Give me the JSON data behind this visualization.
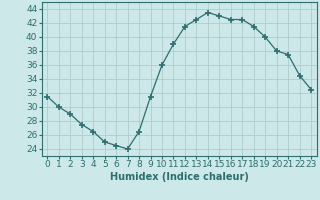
{
  "x": [
    0,
    1,
    2,
    3,
    4,
    5,
    6,
    7,
    8,
    9,
    10,
    11,
    12,
    13,
    14,
    15,
    16,
    17,
    18,
    19,
    20,
    21,
    22,
    23
  ],
  "y": [
    31.5,
    30,
    29,
    27.5,
    26.5,
    25,
    24.5,
    24,
    26.5,
    31.5,
    36,
    39,
    41.5,
    42.5,
    43.5,
    43,
    42.5,
    42.5,
    41.5,
    40,
    38,
    37.5,
    34.5,
    32.5
  ],
  "line_color": "#2d6e6e",
  "marker": "+",
  "marker_size": 4,
  "marker_lw": 1.2,
  "bg_color": "#cce8e8",
  "grid_color": "#aac8c8",
  "xlabel": "Humidex (Indice chaleur)",
  "xlim": [
    -0.5,
    23.5
  ],
  "ylim": [
    23,
    45
  ],
  "yticks": [
    24,
    26,
    28,
    30,
    32,
    34,
    36,
    38,
    40,
    42,
    44
  ],
  "xticks": [
    0,
    1,
    2,
    3,
    4,
    5,
    6,
    7,
    8,
    9,
    10,
    11,
    12,
    13,
    14,
    15,
    16,
    17,
    18,
    19,
    20,
    21,
    22,
    23
  ],
  "label_fontsize": 7,
  "tick_fontsize": 6.5
}
